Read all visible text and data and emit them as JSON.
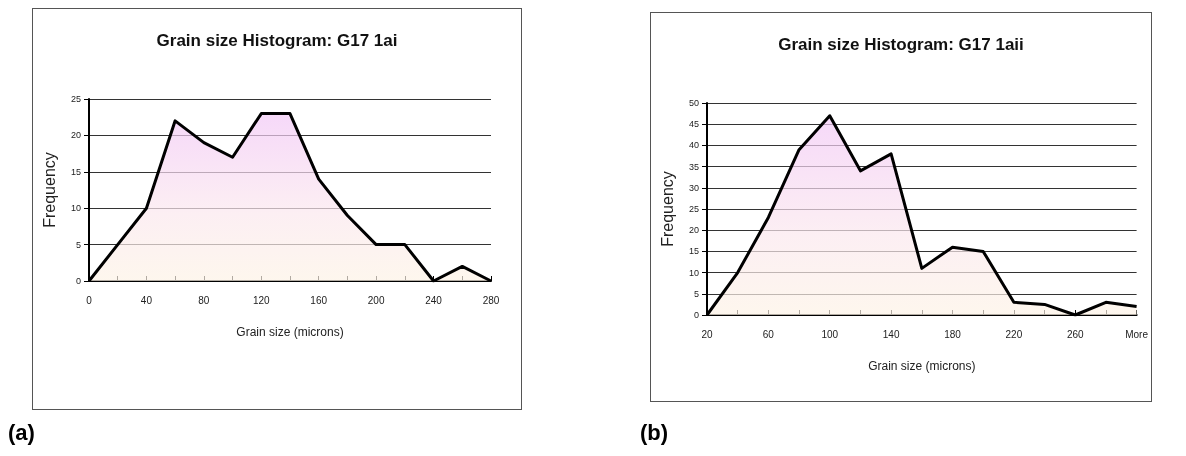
{
  "chart_data": [
    {
      "type": "area",
      "title": "Grain size Histogram: G17 1ai",
      "xlabel": "Grain size (microns)",
      "ylabel": "Frequency",
      "categories": [
        "0",
        null,
        "40",
        null,
        "80",
        null,
        "120",
        null,
        "160",
        null,
        "200",
        null,
        "240",
        null,
        "280"
      ],
      "series": [
        {
          "color": "#000000",
          "values": [
            0,
            5,
            10,
            22,
            19,
            17,
            23,
            23,
            14,
            9,
            5,
            5,
            0,
            2,
            0
          ]
        }
      ],
      "ylim": [
        0,
        25
      ],
      "yticks": [
        0,
        5,
        10,
        15,
        20,
        25
      ],
      "grid": "y",
      "annotations": [
        "(a)"
      ]
    },
    {
      "type": "area",
      "title": "Grain size Histogram: G17 1aii",
      "xlabel": "Grain size (microns)",
      "ylabel": "Frequency",
      "categories": [
        "20",
        null,
        "60",
        null,
        "100",
        null,
        "140",
        null,
        "180",
        null,
        "220",
        null,
        "260",
        null,
        "More"
      ],
      "series": [
        {
          "color": "#000000",
          "values": [
            0,
            10,
            23,
            39,
            47,
            34,
            38,
            11,
            16,
            15,
            3,
            2.5,
            0,
            3,
            2
          ]
        }
      ],
      "ylim": [
        0,
        50
      ],
      "yticks": [
        0,
        5,
        10,
        15,
        20,
        25,
        30,
        35,
        40,
        45,
        50
      ],
      "grid": "y",
      "annotations": [
        "(b)"
      ]
    }
  ]
}
